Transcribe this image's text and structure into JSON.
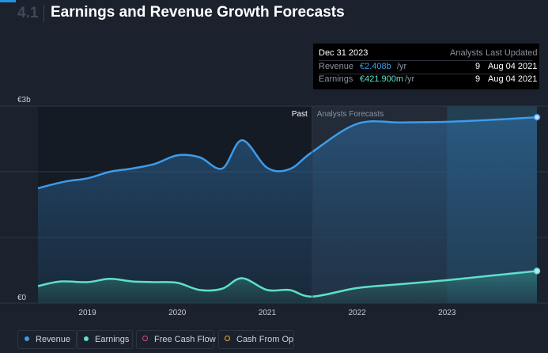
{
  "header": {
    "section_number": "4.1",
    "title": "Earnings and Revenue Growth Forecasts"
  },
  "tooltip": {
    "date": "Dec 31 2023",
    "col_analysts": "Analysts",
    "col_updated": "Last Updated",
    "rows": [
      {
        "label": "Revenue",
        "value": "€2.408b",
        "unit": "/yr",
        "analysts": "9",
        "updated": "Aug 04 2021",
        "color": "#3e9be9"
      },
      {
        "label": "Earnings",
        "value": "€421.900m",
        "unit": "/yr",
        "analysts": "9",
        "updated": "Aug 04 2021",
        "color": "#5ee0c8"
      }
    ]
  },
  "legend": [
    {
      "label": "Revenue",
      "color": "#3e9be9",
      "style": "filled"
    },
    {
      "label": "Earnings",
      "color": "#5ee0c8",
      "style": "filled"
    },
    {
      "label": "Free Cash Flow",
      "color": "#e0457b",
      "style": "outline"
    },
    {
      "label": "Cash From Op",
      "color": "#e8a93e",
      "style": "outline"
    }
  ],
  "chart_data": {
    "type": "area",
    "ylabel_top": "€3b",
    "ylabel_bottom": "€0",
    "ylim": [
      0,
      3.0
    ],
    "xlim": [
      2018.45,
      2024.0
    ],
    "past_boundary": 2021.5,
    "past_label": "Past",
    "forecast_label": "Analysts Forecasts",
    "x_ticks": [
      {
        "x": 2019,
        "label": "2019"
      },
      {
        "x": 2020,
        "label": "2020"
      },
      {
        "x": 2021,
        "label": "2021"
      },
      {
        "x": 2022,
        "label": "2022"
      },
      {
        "x": 2023,
        "label": "2023"
      }
    ],
    "series": [
      {
        "name": "Revenue",
        "color": "#3e9be9",
        "x": [
          2018.45,
          2018.75,
          2019.0,
          2019.25,
          2019.5,
          2019.75,
          2020.0,
          2020.25,
          2020.5,
          2020.72,
          2021.0,
          2021.25,
          2021.5,
          2022.0,
          2022.5,
          2023.0,
          2023.5,
          2024.0
        ],
        "values": [
          1.75,
          1.85,
          1.9,
          2.0,
          2.05,
          2.12,
          2.25,
          2.22,
          2.05,
          2.48,
          2.06,
          2.04,
          2.3,
          2.73,
          2.75,
          2.76,
          2.79,
          2.83
        ]
      },
      {
        "name": "Earnings",
        "color": "#5ee0c8",
        "x": [
          2018.45,
          2018.7,
          2019.0,
          2019.25,
          2019.5,
          2019.75,
          2020.0,
          2020.25,
          2020.5,
          2020.72,
          2021.0,
          2021.25,
          2021.5,
          2022.0,
          2022.5,
          2023.0,
          2023.5,
          2024.0
        ],
        "values": [
          0.26,
          0.33,
          0.32,
          0.37,
          0.33,
          0.32,
          0.31,
          0.2,
          0.22,
          0.38,
          0.2,
          0.2,
          0.1,
          0.23,
          0.29,
          0.35,
          0.42,
          0.49
        ]
      }
    ]
  }
}
